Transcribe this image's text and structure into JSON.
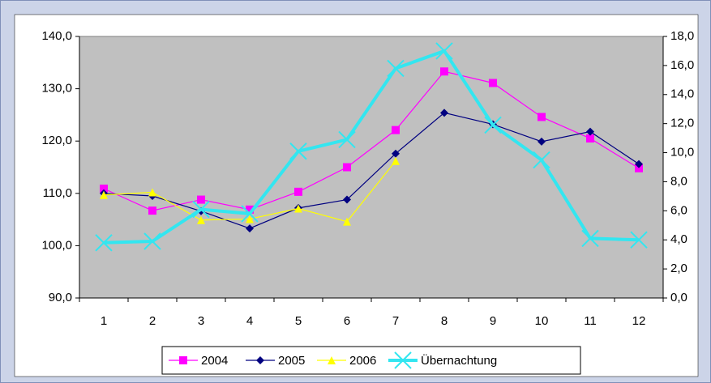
{
  "chart_data": {
    "type": "line",
    "categories": [
      "1",
      "2",
      "3",
      "4",
      "5",
      "6",
      "7",
      "8",
      "9",
      "10",
      "11",
      "12"
    ],
    "series": [
      {
        "name": "2004",
        "color": "#ff00ff",
        "marker": "square",
        "values": [
          110.9,
          106.7,
          108.8,
          106.9,
          110.3,
          115.0,
          122.1,
          133.3,
          131.1,
          124.6,
          120.5,
          114.8
        ]
      },
      {
        "name": "2005",
        "color": "#000080",
        "marker": "diamond",
        "values": [
          110.0,
          109.5,
          106.6,
          103.3,
          107.2,
          108.8,
          117.6,
          125.4,
          123.2,
          119.9,
          121.8,
          115.6
        ]
      },
      {
        "name": "2006",
        "color": "#ffff00",
        "marker": "triangle",
        "values": [
          109.7,
          110.2,
          104.9,
          105.1,
          107.1,
          104.6,
          116.2,
          null,
          null,
          null,
          null,
          null
        ]
      },
      {
        "name": "Übernachtung",
        "color": "#33e6f0",
        "marker": "x",
        "axis": "y2",
        "values": [
          3.8,
          3.9,
          6.1,
          5.8,
          10.1,
          10.9,
          15.8,
          17.0,
          11.9,
          9.5,
          4.1,
          4.0
        ]
      }
    ],
    "ylim": [
      90,
      140
    ],
    "yticks": [
      {
        "value": 90,
        "label": "90,0"
      },
      {
        "value": 100,
        "label": "100,0"
      },
      {
        "value": 110,
        "label": "110,0"
      },
      {
        "value": 120,
        "label": "120,0"
      },
      {
        "value": 130,
        "label": "130,0"
      },
      {
        "value": 140,
        "label": "140,0"
      }
    ],
    "y2lim": [
      0,
      18
    ],
    "y2ticks": [
      {
        "value": 0,
        "label": "0,0"
      },
      {
        "value": 2,
        "label": "2,0"
      },
      {
        "value": 4,
        "label": "4,0"
      },
      {
        "value": 6,
        "label": "6,0"
      },
      {
        "value": 8,
        "label": "8,0"
      },
      {
        "value": 10,
        "label": "10,0"
      },
      {
        "value": 12,
        "label": "12,0"
      },
      {
        "value": 14,
        "label": "14,0"
      },
      {
        "value": 16,
        "label": "16,0"
      },
      {
        "value": 18,
        "label": "18,0"
      }
    ],
    "plot_background": "#c0c0c0",
    "legend": "bottom"
  }
}
